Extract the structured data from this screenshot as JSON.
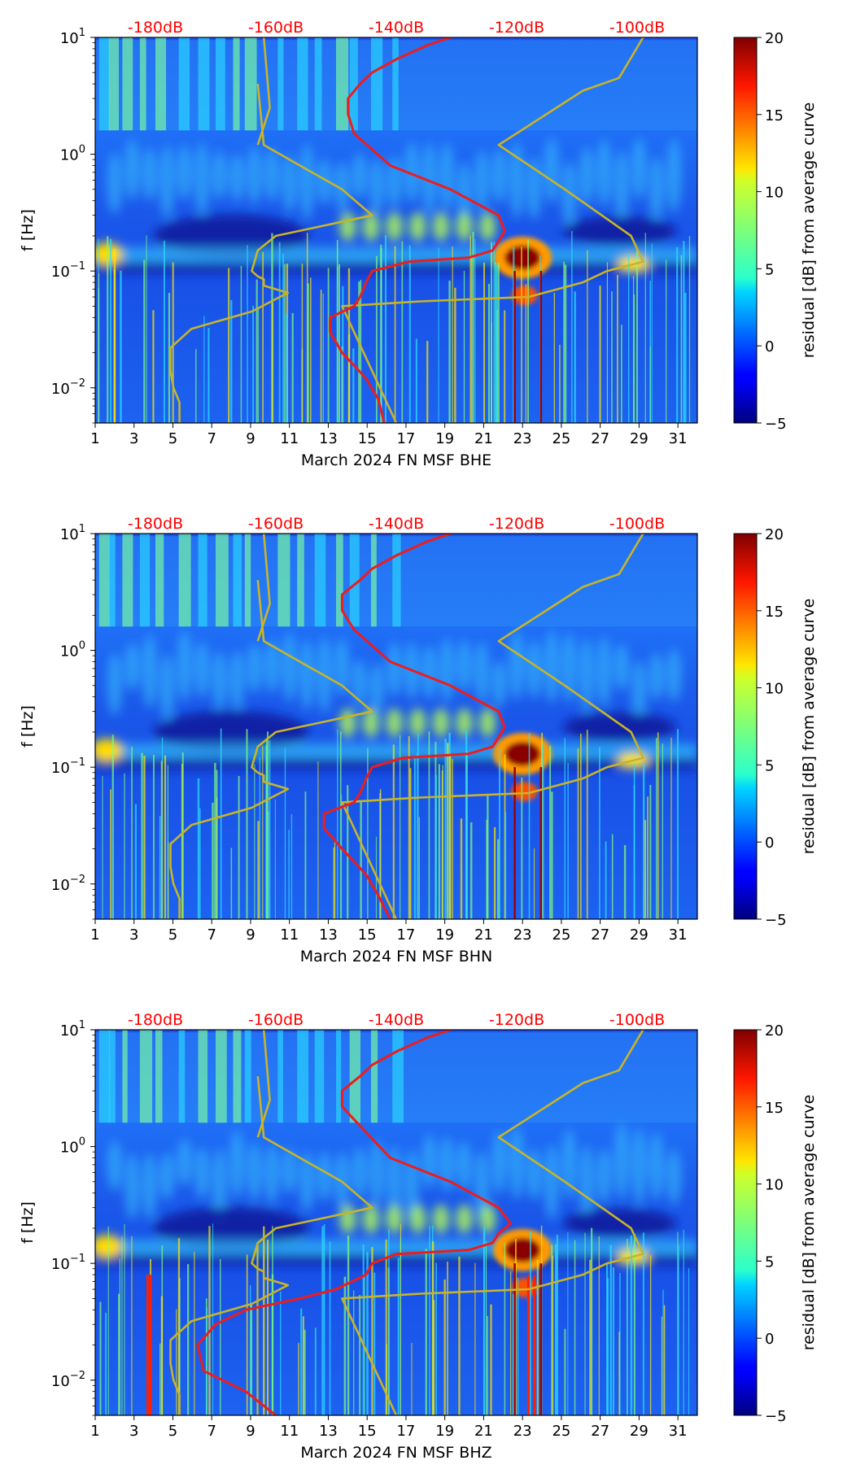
{
  "chart_data": [
    {
      "type": "heatmap",
      "component": "BHE",
      "xlabel": "March 2024 FN MSF  BHE",
      "ylabel": "f [Hz]",
      "x_ticks": [
        "1",
        "3",
        "5",
        "7",
        "9",
        "11",
        "13",
        "15",
        "17",
        "19",
        "21",
        "23",
        "25",
        "27",
        "29",
        "31"
      ],
      "xlim": [
        1,
        32
      ],
      "ylim_hz": [
        0.005,
        10
      ],
      "y_ticks": [
        {
          "base": "10",
          "exp": "1",
          "value": 10
        },
        {
          "base": "10",
          "exp": "0",
          "value": 1
        },
        {
          "base": "10",
          "exp": "−1",
          "value": 0.1
        },
        {
          "base": "10",
          "exp": "−2",
          "value": 0.01
        }
      ],
      "db_ticks": [
        "-180dB",
        "-160dB",
        "-140dB",
        "-120dB",
        "-100dB"
      ],
      "db_range": [
        -190,
        -90
      ],
      "colorbar": {
        "label": "residual [dB] from average curve",
        "ticks": [
          "20",
          "15",
          "10",
          "5",
          "0",
          "−5"
        ],
        "range": [
          -5,
          20
        ]
      },
      "curves": [
        {
          "name": "yellow-envelope-left",
          "color": "#c8b428",
          "dB": [
            -176,
            -176,
            -177,
            -177.5,
            -177.5,
            -174,
            -164,
            -158,
            -162,
            -162,
            -163,
            -164,
            -163,
            -160,
            -144,
            -149,
            -156,
            -162,
            -163
          ],
          "f_hz": [
            0.005,
            0.0075,
            0.01,
            0.014,
            0.022,
            0.032,
            0.045,
            0.065,
            0.075,
            0.085,
            0.09,
            0.1,
            0.15,
            0.2,
            0.3,
            0.5,
            0.8,
            1.2,
            4
          ]
        },
        {
          "name": "yellow-envelope-left-top",
          "color": "#c8b428",
          "dB": [
            -163,
            -161,
            -162
          ],
          "f_hz": [
            1.2,
            2.5,
            10
          ]
        },
        {
          "name": "yellow-envelope-right",
          "color": "#c8b428",
          "dB": [
            -140,
            -149,
            -136,
            -118,
            -109,
            -105,
            -99,
            -101,
            -112,
            -123,
            -109,
            -103,
            -99
          ],
          "f_hz": [
            0.005,
            0.05,
            0.055,
            0.06,
            0.08,
            0.1,
            0.12,
            0.2,
            0.5,
            1.2,
            3.5,
            4.5,
            10
          ]
        },
        {
          "name": "red-mean-curve",
          "color": "#ee1c1c",
          "dB": [
            -142,
            -143,
            -145,
            -149,
            -151,
            -151,
            -147,
            -146,
            -145,
            -144,
            -138,
            -128,
            -124,
            -123,
            -122,
            -123,
            -131,
            -141,
            -147,
            -148,
            -148,
            -146,
            -144,
            -140,
            -135,
            -131
          ],
          "f_hz": [
            0.005,
            0.008,
            0.012,
            0.02,
            0.03,
            0.04,
            0.05,
            0.06,
            0.08,
            0.1,
            0.12,
            0.13,
            0.15,
            0.18,
            0.22,
            0.3,
            0.5,
            0.8,
            1.5,
            2.2,
            3,
            4,
            5,
            6.5,
            8.5,
            10
          ]
        }
      ]
    },
    {
      "type": "heatmap",
      "component": "BHN",
      "xlabel": "March 2024 FN MSF  BHN",
      "ylabel": "f [Hz]",
      "x_ticks": [
        "1",
        "3",
        "5",
        "7",
        "9",
        "11",
        "13",
        "15",
        "17",
        "19",
        "21",
        "23",
        "25",
        "27",
        "29",
        "31"
      ],
      "xlim": [
        1,
        32
      ],
      "ylim_hz": [
        0.005,
        10
      ],
      "y_ticks": [
        {
          "base": "10",
          "exp": "1",
          "value": 10
        },
        {
          "base": "10",
          "exp": "0",
          "value": 1
        },
        {
          "base": "10",
          "exp": "−1",
          "value": 0.1
        },
        {
          "base": "10",
          "exp": "−2",
          "value": 0.01
        }
      ],
      "db_ticks": [
        "-180dB",
        "-160dB",
        "-140dB",
        "-120dB",
        "-100dB"
      ],
      "db_range": [
        -190,
        -90
      ],
      "colorbar": {
        "label": "residual [dB] from average curve",
        "ticks": [
          "20",
          "15",
          "10",
          "5",
          "0",
          "−5"
        ],
        "range": [
          -5,
          20
        ]
      },
      "curves": [
        {
          "name": "yellow-envelope-left",
          "color": "#c8b428",
          "dB": [
            -176,
            -176,
            -177,
            -177.5,
            -177.5,
            -174,
            -164,
            -158,
            -162,
            -162,
            -163,
            -164,
            -163,
            -160,
            -144,
            -149,
            -156,
            -162,
            -163
          ],
          "f_hz": [
            0.005,
            0.0075,
            0.01,
            0.014,
            0.022,
            0.032,
            0.045,
            0.065,
            0.075,
            0.085,
            0.09,
            0.1,
            0.15,
            0.2,
            0.3,
            0.5,
            0.8,
            1.2,
            4
          ]
        },
        {
          "name": "yellow-envelope-left-top",
          "color": "#c8b428",
          "dB": [
            -163,
            -161,
            -162
          ],
          "f_hz": [
            1.2,
            2.5,
            10
          ]
        },
        {
          "name": "yellow-envelope-right",
          "color": "#c8b428",
          "dB": [
            -140,
            -149,
            -136,
            -118,
            -109,
            -105,
            -99,
            -101,
            -112,
            -123,
            -109,
            -103,
            -99
          ],
          "f_hz": [
            0.005,
            0.05,
            0.055,
            0.06,
            0.08,
            0.1,
            0.12,
            0.2,
            0.5,
            1.2,
            3.5,
            4.5,
            10
          ]
        },
        {
          "name": "red-mean-curve",
          "color": "#ee1c1c",
          "dB": [
            -141,
            -143,
            -145,
            -149,
            -152,
            -152,
            -147,
            -146,
            -145,
            -144,
            -139,
            -128,
            -124,
            -123,
            -122,
            -123,
            -131,
            -141,
            -147,
            -149,
            -149,
            -146,
            -144,
            -140,
            -135,
            -131
          ],
          "f_hz": [
            0.005,
            0.008,
            0.012,
            0.02,
            0.03,
            0.04,
            0.05,
            0.06,
            0.08,
            0.1,
            0.12,
            0.13,
            0.15,
            0.18,
            0.22,
            0.3,
            0.5,
            0.8,
            1.5,
            2.2,
            3,
            4,
            5,
            6.5,
            8.5,
            10
          ]
        }
      ]
    },
    {
      "type": "heatmap",
      "component": "BHZ",
      "xlabel": "March 2024 FN MSF  BHZ",
      "ylabel": "f [Hz]",
      "x_ticks": [
        "1",
        "3",
        "5",
        "7",
        "9",
        "11",
        "13",
        "15",
        "17",
        "19",
        "21",
        "23",
        "25",
        "27",
        "29",
        "31"
      ],
      "xlim": [
        1,
        32
      ],
      "ylim_hz": [
        0.005,
        10
      ],
      "y_ticks": [
        {
          "base": "10",
          "exp": "1",
          "value": 10
        },
        {
          "base": "10",
          "exp": "0",
          "value": 1
        },
        {
          "base": "10",
          "exp": "−1",
          "value": 0.1
        },
        {
          "base": "10",
          "exp": "−2",
          "value": 0.01
        }
      ],
      "db_ticks": [
        "-180dB",
        "-160dB",
        "-140dB",
        "-120dB",
        "-100dB"
      ],
      "db_range": [
        -190,
        -90
      ],
      "colorbar": {
        "label": "residual [dB] from average curve",
        "ticks": [
          "20",
          "15",
          "10",
          "5",
          "0",
          "−5"
        ],
        "range": [
          -5,
          20
        ]
      },
      "curves": [
        {
          "name": "yellow-envelope-left",
          "color": "#c8b428",
          "dB": [
            -176,
            -176,
            -177,
            -177.5,
            -177.5,
            -174,
            -164,
            -158,
            -162,
            -162,
            -163,
            -164,
            -163,
            -160,
            -144,
            -149,
            -156,
            -162,
            -163
          ],
          "f_hz": [
            0.005,
            0.0075,
            0.01,
            0.014,
            0.022,
            0.032,
            0.045,
            0.065,
            0.075,
            0.085,
            0.09,
            0.1,
            0.15,
            0.2,
            0.3,
            0.5,
            0.8,
            1.2,
            4
          ]
        },
        {
          "name": "yellow-envelope-left-top",
          "color": "#c8b428",
          "dB": [
            -163,
            -161,
            -162
          ],
          "f_hz": [
            1.2,
            2.5,
            10
          ]
        },
        {
          "name": "yellow-envelope-right",
          "color": "#c8b428",
          "dB": [
            -140,
            -149,
            -136,
            -118,
            -109,
            -105,
            -99,
            -101,
            -112,
            -123,
            -109,
            -103,
            -99
          ],
          "f_hz": [
            0.005,
            0.05,
            0.055,
            0.06,
            0.08,
            0.1,
            0.12,
            0.2,
            0.5,
            1.2,
            3.5,
            4.5,
            10
          ]
        },
        {
          "name": "red-mean-curve",
          "color": "#ee1c1c",
          "dB": [
            -160,
            -165,
            -172,
            -173,
            -170,
            -165,
            -156,
            -150,
            -145,
            -144,
            -140,
            -128,
            -124,
            -123,
            -121,
            -123,
            -131,
            -141,
            -146,
            -149,
            -149,
            -146,
            -144,
            -140,
            -135,
            -131
          ],
          "f_hz": [
            0.005,
            0.008,
            0.012,
            0.02,
            0.03,
            0.04,
            0.05,
            0.06,
            0.08,
            0.1,
            0.12,
            0.13,
            0.15,
            0.18,
            0.22,
            0.3,
            0.5,
            0.8,
            1.5,
            2.2,
            3,
            4,
            5,
            6.5,
            8.5,
            10
          ]
        }
      ]
    }
  ]
}
